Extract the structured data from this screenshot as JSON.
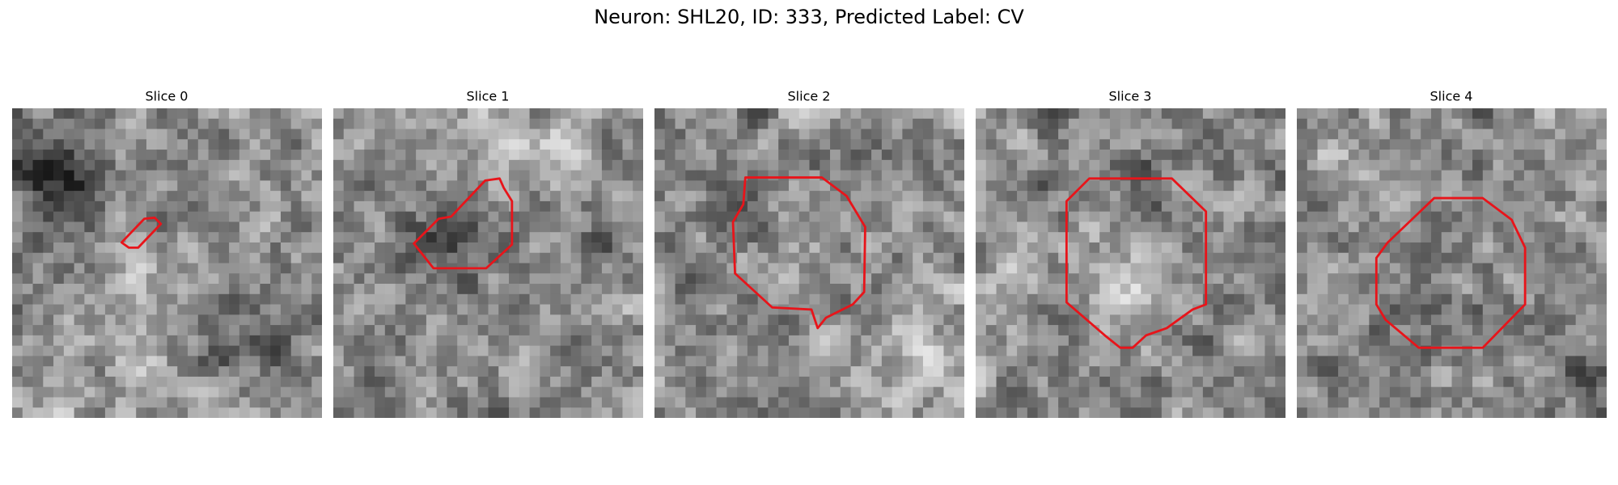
{
  "title": "Neuron: SHL20, ID: 333, Predicted Label: CV",
  "panels": [
    {
      "title": "Slice 0"
    },
    {
      "title": "Slice 1"
    },
    {
      "title": "Slice 2"
    },
    {
      "title": "Slice 3"
    },
    {
      "title": "Slice 4"
    }
  ]
}
